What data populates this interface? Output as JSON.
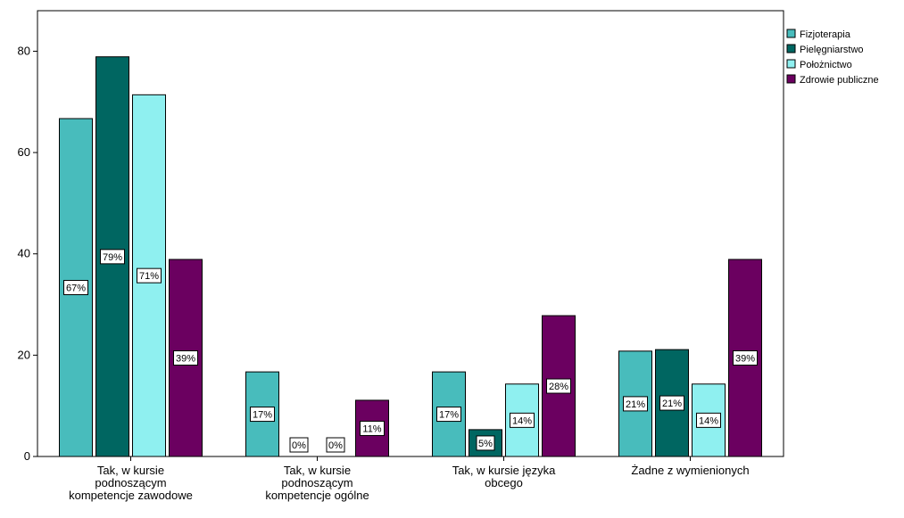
{
  "chart_data": {
    "type": "bar",
    "title": "",
    "xlabel": "",
    "ylabel": "",
    "ylim": [
      0,
      88
    ],
    "yticks": [
      0,
      20,
      40,
      60,
      80
    ],
    "grid": false,
    "legend_position": "top-right",
    "categories": [
      [
        "Tak, w kursie",
        "podnoszącym",
        "kompetencje zawodowe"
      ],
      [
        "Tak, w kursie",
        "podnoszącym",
        "kompetencje ogólne"
      ],
      [
        "Tak, w kursie języka",
        "obcego"
      ],
      [
        "Żadne z wymienionych"
      ]
    ],
    "series": [
      {
        "name": "Fizjoterapia",
        "color": "#48bcbc",
        "values": [
          66.7,
          16.7,
          16.7,
          20.8
        ],
        "labels": [
          "67%",
          "17%",
          "17%",
          "21%"
        ]
      },
      {
        "name": "Pielęgniarstwo",
        "color": "#006661",
        "values": [
          78.9,
          0,
          5.3,
          21.1
        ],
        "labels": [
          "79%",
          "0%",
          "5%",
          "21%"
        ]
      },
      {
        "name": "Położnictwo",
        "color": "#8ff0f0",
        "values": [
          71.4,
          0,
          14.3,
          14.3
        ],
        "labels": [
          "71%",
          "0%",
          "14%",
          "14%"
        ]
      },
      {
        "name": "Zdrowie publiczne",
        "color": "#6b0060",
        "values": [
          38.9,
          11.1,
          27.8,
          38.9
        ],
        "labels": [
          "39%",
          "11%",
          "28%",
          "39%"
        ]
      }
    ]
  }
}
